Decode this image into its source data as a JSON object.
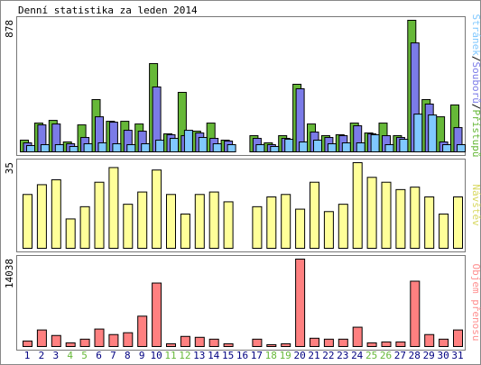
{
  "title": "Denní statistika za leden 2014",
  "legend_separator": "/",
  "chart_data": [
    {
      "type": "bar",
      "ylim": [
        0,
        878
      ],
      "yticks": [
        878
      ],
      "series": [
        {
          "name": "Přístupů",
          "color": "#66b838",
          "values": [
            78,
            192,
            210,
            66,
            180,
            349,
            204,
            204,
            186,
            589,
            120,
            397,
            138,
            192,
            78,
            0,
            108,
            60,
            108,
            451,
            186,
            108,
            114,
            192,
            126,
            192,
            108,
            878,
            349,
            234,
            313
          ]
        },
        {
          "name": "Souborů",
          "color": "#7b7be8",
          "values": [
            60,
            180,
            186,
            54,
            96,
            234,
            198,
            144,
            138,
            433,
            114,
            108,
            126,
            90,
            72,
            0,
            90,
            48,
            90,
            421,
            132,
            96,
            108,
            174,
            120,
            108,
            96,
            727,
            319,
            66,
            162
          ]
        },
        {
          "name": "Stránek",
          "color": "#80c8ff",
          "values": [
            42,
            48,
            48,
            36,
            54,
            60,
            54,
            48,
            54,
            78,
            90,
            144,
            96,
            54,
            48,
            0,
            48,
            36,
            84,
            66,
            78,
            54,
            60,
            60,
            114,
            48,
            84,
            252,
            246,
            48,
            48
          ]
        }
      ]
    },
    {
      "type": "bar",
      "ylim": [
        0,
        35
      ],
      "yticks": [
        35
      ],
      "series": [
        {
          "name": "Návštěv",
          "color": "#ffff99",
          "label_color": "#d8d860",
          "values": [
            22,
            26,
            28,
            12,
            17,
            27,
            33,
            18,
            23,
            32,
            22,
            14,
            22,
            23,
            19,
            0,
            17,
            21,
            22,
            16,
            27,
            15,
            18,
            35,
            29,
            27,
            24,
            25,
            21,
            14,
            21
          ]
        }
      ]
    },
    {
      "type": "bar",
      "ylim": [
        0,
        14038
      ],
      "yticks": [
        14038
      ],
      "categories": [
        "1",
        "2",
        "3",
        "4",
        "5",
        "6",
        "7",
        "8",
        "9",
        "10",
        "11",
        "12",
        "13",
        "14",
        "15",
        "16",
        "17",
        "18",
        "19",
        "20",
        "21",
        "22",
        "23",
        "24",
        "25",
        "26",
        "27",
        "28",
        "29",
        "30",
        "31"
      ],
      "category_colors": [
        "#000080",
        "#000080",
        "#000080",
        "#66b838",
        "#66b838",
        "#000080",
        "#000080",
        "#000080",
        "#000080",
        "#000080",
        "#66b838",
        "#66b838",
        "#000080",
        "#000080",
        "#000080",
        "#000080",
        "#000080",
        "#66b838",
        "#66b838",
        "#000080",
        "#000080",
        "#000080",
        "#000080",
        "#000080",
        "#66b838",
        "#66b838",
        "#000080",
        "#000080",
        "#000080",
        "#000080",
        "#000080"
      ],
      "series": [
        {
          "name": "Objem přenosu",
          "color": "#ff8080",
          "label_color": "#ff9090",
          "values": [
            887,
            2660,
            1773,
            591,
            1182,
            2808,
            1921,
            2216,
            4876,
            10196,
            443,
            1625,
            1478,
            1182,
            443,
            0,
            1182,
            296,
            443,
            14038,
            1330,
            1182,
            1182,
            3103,
            591,
            739,
            739,
            10492,
            1921,
            1182,
            2660
          ]
        }
      ]
    }
  ]
}
